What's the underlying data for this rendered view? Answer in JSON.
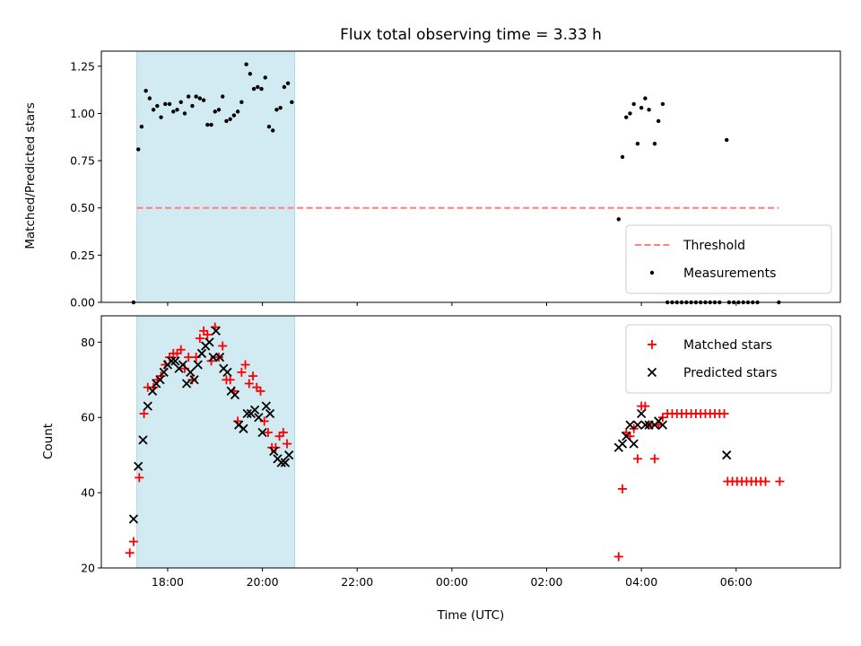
{
  "chart_data": [
    {
      "type": "scatter",
      "title": "Flux total observing time = 3.33 h",
      "xlabel": "",
      "ylabel": "Matched/Predicted stars",
      "x_unit": "hours since 00:00 UTC (evening hours negative)",
      "xlim": [
        -7.4,
        8.2
      ],
      "ylim": [
        0,
        1.33
      ],
      "yticks": [
        "0.00",
        "0.25",
        "0.50",
        "0.75",
        "1.00",
        "1.25"
      ],
      "shaded_interval": [
        -6.65,
        -3.32
      ],
      "shade_color": "#add8e6",
      "legend_position": "lower-right",
      "threshold": {
        "name": "Threshold",
        "value": 0.5,
        "x_range": [
          -6.65,
          6.9
        ],
        "color": "#ff7f7f",
        "style": "dashed"
      },
      "series": [
        {
          "name": "Measurements",
          "color": "#000000",
          "marker": "dot",
          "points": [
            [
              -6.72,
              0.0
            ],
            [
              -6.62,
              0.81
            ],
            [
              -6.55,
              0.93
            ],
            [
              -6.46,
              1.12
            ],
            [
              -6.38,
              1.08
            ],
            [
              -6.3,
              1.02
            ],
            [
              -6.22,
              1.04
            ],
            [
              -6.14,
              0.98
            ],
            [
              -6.05,
              1.05
            ],
            [
              -5.96,
              1.05
            ],
            [
              -5.88,
              1.01
            ],
            [
              -5.8,
              1.02
            ],
            [
              -5.72,
              1.06
            ],
            [
              -5.64,
              1.0
            ],
            [
              -5.56,
              1.09
            ],
            [
              -5.48,
              1.04
            ],
            [
              -5.4,
              1.09
            ],
            [
              -5.32,
              1.08
            ],
            [
              -5.24,
              1.07
            ],
            [
              -5.16,
              0.94
            ],
            [
              -5.08,
              0.94
            ],
            [
              -5.0,
              1.01
            ],
            [
              -4.92,
              1.02
            ],
            [
              -4.84,
              1.09
            ],
            [
              -4.76,
              0.96
            ],
            [
              -4.68,
              0.97
            ],
            [
              -4.6,
              0.99
            ],
            [
              -4.52,
              1.01
            ],
            [
              -4.44,
              1.06
            ],
            [
              -4.34,
              1.26
            ],
            [
              -4.26,
              1.21
            ],
            [
              -4.18,
              1.13
            ],
            [
              -4.1,
              1.14
            ],
            [
              -4.02,
              1.13
            ],
            [
              -3.94,
              1.19
            ],
            [
              -3.86,
              0.93
            ],
            [
              -3.78,
              0.91
            ],
            [
              -3.7,
              1.02
            ],
            [
              -3.62,
              1.03
            ],
            [
              -3.54,
              1.14
            ],
            [
              -3.46,
              1.16
            ],
            [
              -3.38,
              1.06
            ],
            [
              3.52,
              0.44
            ],
            [
              3.6,
              0.77
            ],
            [
              3.68,
              0.98
            ],
            [
              3.76,
              1.0
            ],
            [
              3.84,
              1.05
            ],
            [
              3.92,
              0.84
            ],
            [
              4.0,
              1.03
            ],
            [
              4.08,
              1.08
            ],
            [
              4.16,
              1.02
            ],
            [
              4.28,
              0.84
            ],
            [
              4.36,
              0.96
            ],
            [
              4.45,
              1.05
            ],
            [
              5.8,
              0.86
            ],
            [
              4.55,
              0.0
            ],
            [
              4.65,
              0.0
            ],
            [
              4.75,
              0.0
            ],
            [
              4.85,
              0.0
            ],
            [
              4.95,
              0.0
            ],
            [
              5.05,
              0.0
            ],
            [
              5.15,
              0.0
            ],
            [
              5.25,
              0.0
            ],
            [
              5.35,
              0.0
            ],
            [
              5.45,
              0.0
            ],
            [
              5.55,
              0.0
            ],
            [
              5.65,
              0.0
            ],
            [
              5.85,
              0.0
            ],
            [
              5.95,
              0.0
            ],
            [
              6.05,
              0.0
            ],
            [
              6.15,
              0.0
            ],
            [
              6.25,
              0.0
            ],
            [
              6.35,
              0.0
            ],
            [
              6.45,
              0.0
            ],
            [
              6.9,
              0.0
            ]
          ]
        }
      ]
    },
    {
      "type": "scatter",
      "title": "",
      "xlabel": "Time (UTC)",
      "ylabel": "Count",
      "x_unit": "hours since 00:00 UTC (evening hours negative)",
      "xlim": [
        -7.4,
        8.2
      ],
      "ylim": [
        20,
        87
      ],
      "yticks": [
        "20",
        "40",
        "60",
        "80"
      ],
      "xticks": [
        {
          "value": -6,
          "label": "18:00"
        },
        {
          "value": -4,
          "label": "20:00"
        },
        {
          "value": -2,
          "label": "22:00"
        },
        {
          "value": 0,
          "label": "00:00"
        },
        {
          "value": 2,
          "label": "02:00"
        },
        {
          "value": 4,
          "label": "04:00"
        },
        {
          "value": 6,
          "label": "06:00"
        }
      ],
      "shaded_interval": [
        -6.65,
        -3.32
      ],
      "shade_color": "#add8e6",
      "legend_position": "upper-right",
      "series": [
        {
          "name": "Matched stars",
          "color": "#ff0000",
          "marker": "plus",
          "points": [
            [
              -6.8,
              24
            ],
            [
              -6.72,
              27
            ],
            [
              -6.6,
              44
            ],
            [
              -6.5,
              61
            ],
            [
              -6.42,
              68
            ],
            [
              -6.3,
              68
            ],
            [
              -6.22,
              70
            ],
            [
              -6.14,
              71
            ],
            [
              -6.05,
              74
            ],
            [
              -5.96,
              76
            ],
            [
              -5.88,
              77
            ],
            [
              -5.8,
              77
            ],
            [
              -5.72,
              78
            ],
            [
              -5.64,
              73
            ],
            [
              -5.56,
              76
            ],
            [
              -5.48,
              70
            ],
            [
              -5.4,
              76
            ],
            [
              -5.32,
              81
            ],
            [
              -5.24,
              83
            ],
            [
              -5.16,
              82
            ],
            [
              -5.08,
              75
            ],
            [
              -5.0,
              84
            ],
            [
              -4.92,
              76
            ],
            [
              -4.84,
              79
            ],
            [
              -4.76,
              70
            ],
            [
              -4.68,
              70
            ],
            [
              -4.6,
              67
            ],
            [
              -4.52,
              59
            ],
            [
              -4.44,
              72
            ],
            [
              -4.36,
              74
            ],
            [
              -4.28,
              69
            ],
            [
              -4.2,
              71
            ],
            [
              -4.12,
              68
            ],
            [
              -4.04,
              67
            ],
            [
              -3.96,
              59
            ],
            [
              -3.88,
              56
            ],
            [
              -3.8,
              52
            ],
            [
              -3.72,
              52
            ],
            [
              -3.64,
              55
            ],
            [
              -3.56,
              56
            ],
            [
              -3.48,
              53
            ],
            [
              3.52,
              23
            ],
            [
              3.6,
              41
            ],
            [
              3.68,
              56
            ],
            [
              3.76,
              55
            ],
            [
              3.84,
              57
            ],
            [
              3.92,
              49
            ],
            [
              4.0,
              63
            ],
            [
              4.08,
              63
            ],
            [
              4.16,
              58
            ],
            [
              4.28,
              49
            ],
            [
              4.36,
              58
            ],
            [
              4.45,
              60
            ],
            [
              4.55,
              61
            ],
            [
              4.65,
              61
            ],
            [
              4.75,
              61
            ],
            [
              4.85,
              61
            ],
            [
              4.95,
              61
            ],
            [
              5.05,
              61
            ],
            [
              5.15,
              61
            ],
            [
              5.25,
              61
            ],
            [
              5.35,
              61
            ],
            [
              5.45,
              61
            ],
            [
              5.55,
              61
            ],
            [
              5.65,
              61
            ],
            [
              5.75,
              61
            ],
            [
              5.82,
              43
            ],
            [
              5.92,
              43
            ],
            [
              6.02,
              43
            ],
            [
              6.12,
              43
            ],
            [
              6.22,
              43
            ],
            [
              6.32,
              43
            ],
            [
              6.42,
              43
            ],
            [
              6.52,
              43
            ],
            [
              6.62,
              43
            ],
            [
              6.92,
              43
            ]
          ]
        },
        {
          "name": "Predicted stars",
          "color": "#000000",
          "marker": "x",
          "points": [
            [
              -6.72,
              33
            ],
            [
              -6.62,
              47
            ],
            [
              -6.52,
              54
            ],
            [
              -6.42,
              63
            ],
            [
              -6.32,
              67
            ],
            [
              -6.24,
              69
            ],
            [
              -6.16,
              70
            ],
            [
              -6.08,
              72
            ],
            [
              -6.0,
              74
            ],
            [
              -5.92,
              75
            ],
            [
              -5.84,
              75
            ],
            [
              -5.76,
              73
            ],
            [
              -5.68,
              74
            ],
            [
              -5.6,
              69
            ],
            [
              -5.52,
              72
            ],
            [
              -5.44,
              70
            ],
            [
              -5.36,
              74
            ],
            [
              -5.28,
              77
            ],
            [
              -5.2,
              79
            ],
            [
              -5.12,
              80
            ],
            [
              -5.04,
              76
            ],
            [
              -4.98,
              83
            ],
            [
              -4.9,
              76
            ],
            [
              -4.82,
              73
            ],
            [
              -4.74,
              72
            ],
            [
              -4.66,
              67
            ],
            [
              -4.58,
              66
            ],
            [
              -4.5,
              58
            ],
            [
              -4.4,
              57
            ],
            [
              -4.32,
              61
            ],
            [
              -4.24,
              61
            ],
            [
              -4.16,
              62
            ],
            [
              -4.08,
              60
            ],
            [
              -4.0,
              56
            ],
            [
              -3.92,
              63
            ],
            [
              -3.84,
              61
            ],
            [
              -3.76,
              51
            ],
            [
              -3.68,
              49
            ],
            [
              -3.6,
              48
            ],
            [
              -3.52,
              48
            ],
            [
              -3.44,
              50
            ],
            [
              3.52,
              52
            ],
            [
              3.6,
              53
            ],
            [
              3.68,
              55
            ],
            [
              3.76,
              58
            ],
            [
              3.84,
              53
            ],
            [
              3.92,
              58
            ],
            [
              4.0,
              61
            ],
            [
              4.08,
              58
            ],
            [
              4.16,
              58
            ],
            [
              4.28,
              58
            ],
            [
              4.36,
              59
            ],
            [
              4.45,
              58
            ],
            [
              5.8,
              50
            ]
          ]
        }
      ]
    }
  ]
}
